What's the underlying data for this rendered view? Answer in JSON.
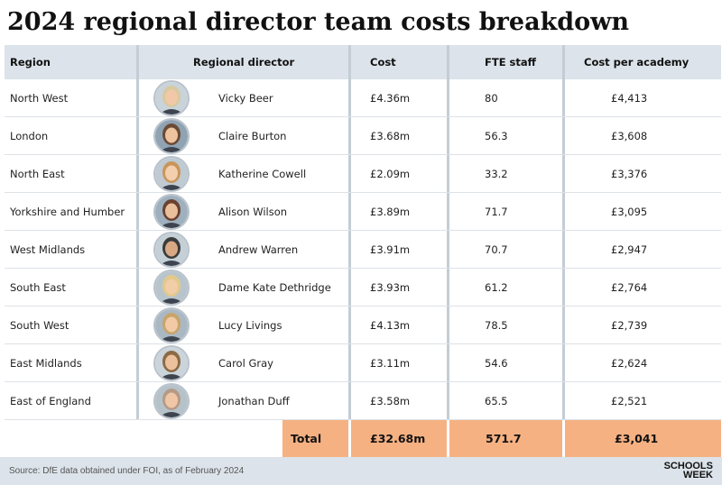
{
  "title": "2024 regional director team costs breakdown",
  "table": {
    "headers": {
      "region": "Region",
      "director": "Regional director",
      "cost": "Cost",
      "fte": "FTE staff",
      "per_academy": "Cost per academy"
    },
    "rows": [
      {
        "region": "North West",
        "director": "Vicky Beer",
        "cost": "£4.36m",
        "fte": "80",
        "per_academy": "£4,413"
      },
      {
        "region": "London",
        "director": "Claire Burton",
        "cost": "£3.68m",
        "fte": "56.3",
        "per_academy": "£3,608"
      },
      {
        "region": "North East",
        "director": "Katherine Cowell",
        "cost": "£2.09m",
        "fte": "33.2",
        "per_academy": "£3,376"
      },
      {
        "region": "Yorkshire and Humber",
        "director": "Alison Wilson",
        "cost": "£3.89m",
        "fte": "71.7",
        "per_academy": "£3,095"
      },
      {
        "region": "West Midlands",
        "director": "Andrew Warren",
        "cost": "£3.91m",
        "fte": "70.7",
        "per_academy": "£2,947"
      },
      {
        "region": "South East",
        "director": "Dame Kate Dethridge",
        "cost": "£3.93m",
        "fte": "61.2",
        "per_academy": "£2,764"
      },
      {
        "region": "South West",
        "director": "Lucy Livings",
        "cost": "£4.13m",
        "fte": "78.5",
        "per_academy": "£2,739"
      },
      {
        "region": "East Midlands",
        "director": "Carol Gray",
        "cost": "£3.11m",
        "fte": "54.6",
        "per_academy": "£2,624"
      },
      {
        "region": "East of England",
        "director": "Jonathan Duff",
        "cost": "£3.58m",
        "fte": "65.5",
        "per_academy": "£2,521"
      }
    ],
    "total": {
      "label": "Total",
      "cost": "£32.68m",
      "fte": "571.7",
      "per_academy": "£3,041"
    }
  },
  "footer": {
    "source": "Source: DfE data obtained under FOI, as of February 2024",
    "logo_line1": "SCHOOLS",
    "logo_line2": "WEEK"
  },
  "colors": {
    "header_bg": "#dce3ea",
    "total_bg": "#f6b182",
    "separator": "#c4cdd5"
  },
  "icons": {
    "avatar": "director-portrait"
  }
}
